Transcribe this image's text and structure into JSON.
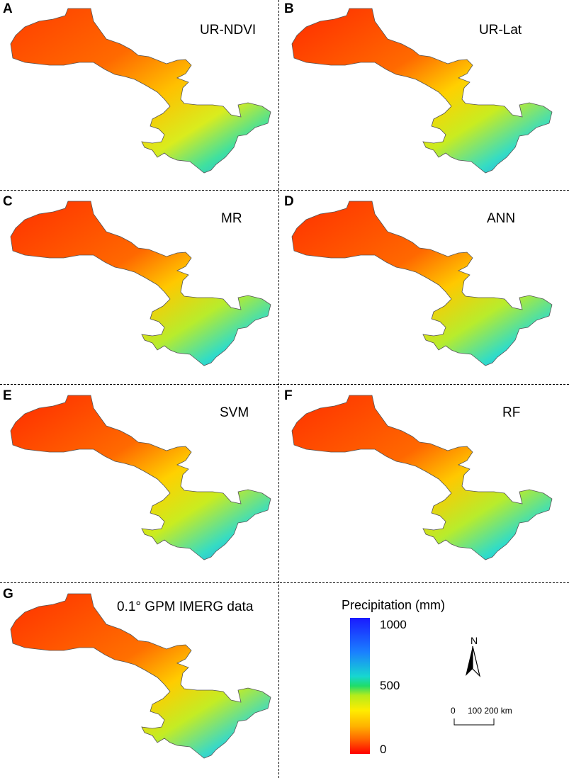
{
  "panels": [
    {
      "letter": "A",
      "title": "UR-NDVI"
    },
    {
      "letter": "B",
      "title": "UR-Lat"
    },
    {
      "letter": "C",
      "title": "MR"
    },
    {
      "letter": "D",
      "title": "ANN"
    },
    {
      "letter": "E",
      "title": "SVM"
    },
    {
      "letter": "F",
      "title": "RF"
    },
    {
      "letter": "G",
      "title": "0.1° GPM IMERG data"
    }
  ],
  "legend": {
    "title": "Precipitation (mm)",
    "ticks": [
      "1000",
      "500",
      "0"
    ],
    "colors": [
      "#1a1aff",
      "#17d7d0",
      "#1fdc6a",
      "#b4ec1c",
      "#ffec00",
      "#ffb000",
      "#ff0000"
    ]
  },
  "north_arrow": {
    "label": "N"
  },
  "scale_bar": {
    "labels": [
      "0",
      "100 200 km"
    ]
  }
}
